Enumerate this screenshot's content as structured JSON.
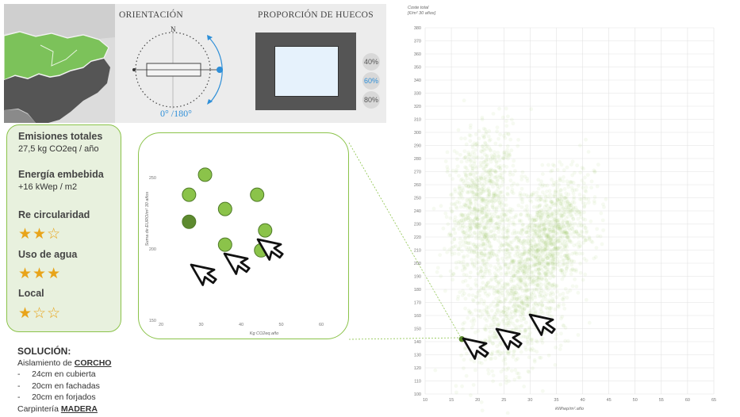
{
  "header": {
    "orientation_title": "ORIENTACIÓN",
    "orientation_value": "0° /180°",
    "compass_north": "N",
    "proportion_title": "PROPORCIÓN DE HUECOS",
    "proportion_options": [
      "40%",
      "60%",
      "80%"
    ],
    "proportion_selected": "60%"
  },
  "metrics": {
    "emissions_label": "Emisiones totales",
    "emissions_value": "27,5 kg CO2eq / año",
    "energy_label": "Energía embebida",
    "energy_value": "+16 kWep / m2",
    "circularity_label": "Re circularidad",
    "circularity_stars": 2,
    "water_label": "Uso de agua",
    "water_stars": 3,
    "local_label": "Local",
    "local_stars": 1
  },
  "solution": {
    "title": "SOLUCIÓN:",
    "insulation_prefix": "Aislamiento de ",
    "insulation_material": "CORCHO",
    "items": [
      "24cm en cubierta",
      "20cm en fachadas",
      "20cm en forjados"
    ],
    "carpentry_prefix": "Carpintería ",
    "carpentry_material": "MADERA"
  },
  "colors": {
    "accent": "#8bc34a",
    "point": "#8bc34a",
    "point_selected": "#5d8a2f",
    "star": "#e8a41a"
  },
  "chart_data": [
    {
      "type": "scatter",
      "title": "",
      "ylabel": "Coste total\n[€/m² 30 años]",
      "xlabel": "kWhep/m².año",
      "xlim": [
        10,
        65
      ],
      "ylim": [
        100,
        380
      ],
      "x_ticks": [
        10,
        15,
        20,
        25,
        30,
        35,
        40,
        45,
        50,
        55,
        60,
        65
      ],
      "y_ticks": [
        100,
        110,
        120,
        130,
        140,
        150,
        160,
        170,
        180,
        190,
        200,
        210,
        220,
        230,
        240,
        250,
        260,
        270,
        280,
        290,
        300,
        310,
        320,
        330,
        340,
        350,
        360,
        370,
        380
      ],
      "grid": true,
      "clusters": [
        {
          "cx": 21,
          "cy": 245,
          "sx": 3.2,
          "sy": 28
        },
        {
          "cx": 28,
          "cy": 175,
          "sx": 5,
          "sy": 28
        },
        {
          "cx": 34,
          "cy": 225,
          "sx": 4,
          "sy": 20
        }
      ],
      "selected_point": {
        "x": 17,
        "y": 142
      }
    },
    {
      "type": "scatter",
      "title": "",
      "xlabel": "Kg CO2eq.año",
      "ylabel": "Suma de EURO/m² 30 años",
      "xlim": [
        20,
        60
      ],
      "ylim": [
        150,
        270
      ],
      "x_ticks": [
        20,
        30,
        40,
        50,
        60
      ],
      "y_ticks": [
        150,
        200,
        250
      ],
      "points": [
        {
          "x": 31,
          "y": 252
        },
        {
          "x": 27,
          "y": 238
        },
        {
          "x": 44,
          "y": 238
        },
        {
          "x": 36,
          "y": 228
        },
        {
          "x": 27,
          "y": 219,
          "selected": true
        },
        {
          "x": 46,
          "y": 213
        },
        {
          "x": 36,
          "y": 203
        },
        {
          "x": 45,
          "y": 199
        }
      ]
    }
  ]
}
